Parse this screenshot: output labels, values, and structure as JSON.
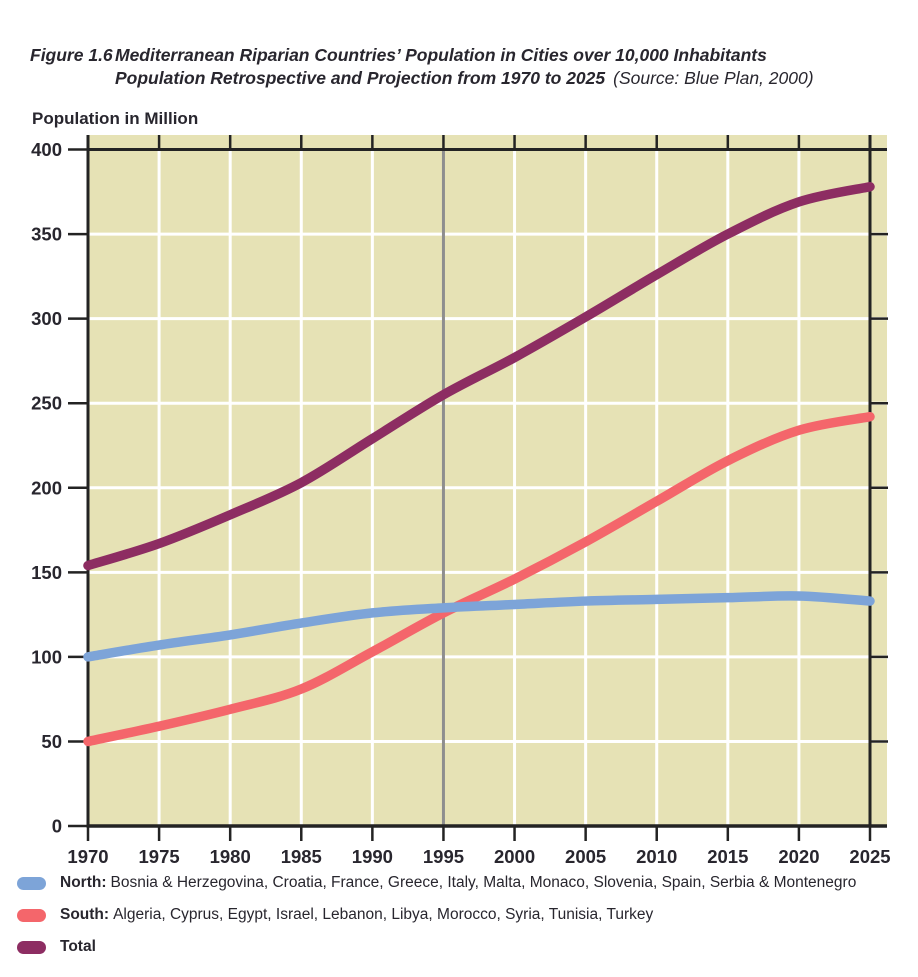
{
  "figure": {
    "label": "Figure 1.6",
    "title_line1": "Mediterranean Riparian Countries’ Population in Cities over 10,000 Inhabitants",
    "title_line2": "Population Retrospective and Projection from 1970 to 2025",
    "source": "(Source: Blue Plan, 2000)"
  },
  "chart_data": {
    "type": "line",
    "title": "Mediterranean Riparian Countries’ Population in Cities over 10,000 Inhabitants — Population Retrospective and Projection from 1970 to 2025",
    "xlabel": "",
    "ylabel": "Population in Million",
    "x": [
      1970,
      1975,
      1980,
      1985,
      1990,
      1995,
      2000,
      2005,
      2010,
      2015,
      2020,
      2025
    ],
    "xticklabels": [
      "1970",
      "1975",
      "1980",
      "1985",
      "1990",
      "1995",
      "2000",
      "2005",
      "2010",
      "2015",
      "2020",
      "2025"
    ],
    "ylim": [
      0,
      400
    ],
    "yticks": [
      0,
      50,
      100,
      150,
      200,
      250,
      300,
      350,
      400
    ],
    "grid": true,
    "plot_background": "#e6e2b5",
    "gridline_color": "#ffffff",
    "axis_color": "#232323",
    "tick_label_color": "#28262e",
    "divider_year": 1995,
    "divider_color": "#8e8e8e",
    "legend_position": "bottom-left",
    "series": [
      {
        "name": "North",
        "color": "#7da4d8",
        "legend_label": "North:",
        "legend_countries": "Bosnia & Herzegovina, Croatia, France, Greece, Italy, Malta, Monaco, Slovenia, Spain, Serbia & Montenegro",
        "values": [
          100,
          107,
          113,
          120,
          126,
          129,
          131,
          133,
          134,
          135,
          136,
          133
        ]
      },
      {
        "name": "South",
        "color": "#f4666b",
        "legend_label": "South:",
        "legend_countries": "Algeria, Cyprus, Egypt, Israel, Lebanon, Libya, Morocco, Syria, Tunisia, Turkey",
        "values": [
          50,
          59,
          69,
          81,
          103,
          126,
          146,
          168,
          192,
          216,
          234,
          242
        ]
      },
      {
        "name": "Total",
        "color": "#8d2d62",
        "legend_label": "Total",
        "legend_countries": "",
        "values": [
          154,
          167,
          184,
          203,
          229,
          255,
          277,
          301,
          326,
          350,
          369,
          378
        ]
      }
    ]
  }
}
